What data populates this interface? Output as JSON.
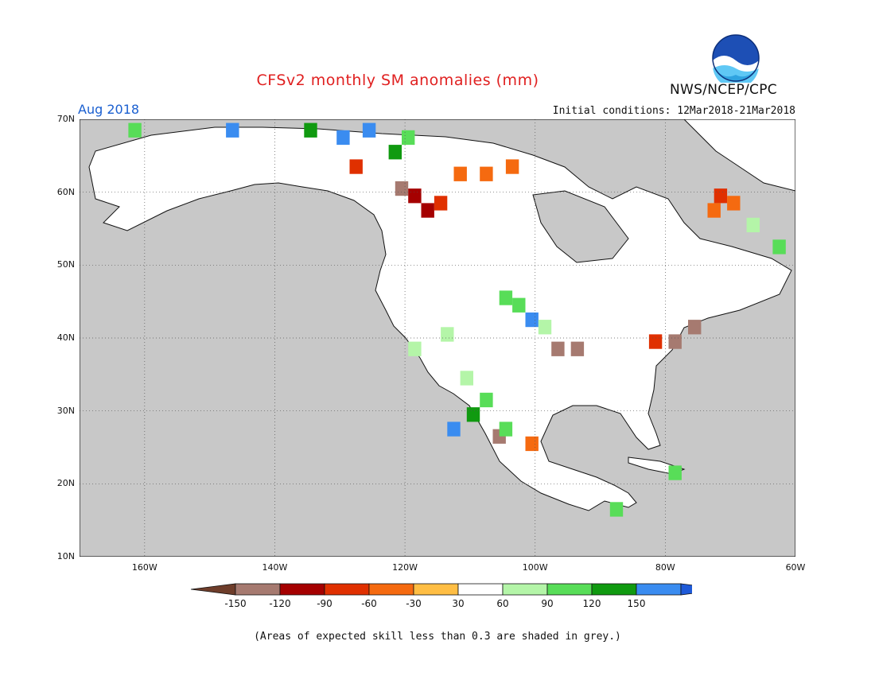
{
  "title": "CFSv2 monthly SM anomalies (mm)",
  "valid_month": "Aug 2018",
  "initial_conditions": "Initial conditions: 12Mar2018-21Mar2018",
  "agency": "NWS/NCEP/CPC",
  "logo_text": "NOAA",
  "footnote": "(Areas of expected skill less than 0.3 are shaded in grey.)",
  "map": {
    "lon_range": [
      -170,
      -60
    ],
    "lat_range": [
      10,
      70
    ],
    "lat_labels": [
      "70N",
      "60N",
      "50N",
      "40N",
      "30N",
      "20N",
      "10N"
    ],
    "lon_labels": [
      "160W",
      "140W",
      "120W",
      "100W",
      "80W",
      "60W"
    ],
    "colors": {
      "no_skill": "#c8c8c8",
      "land_neutral": "#ffffff",
      "coast": "#111111"
    }
  },
  "colorbar": {
    "labels": [
      "-150",
      "-120",
      "-90",
      "-60",
      "-30",
      "30",
      "60",
      "90",
      "120",
      "150"
    ],
    "colors": [
      "#6e3d2a",
      "#a67a70",
      "#a50000",
      "#e03000",
      "#f56a10",
      "#ffbe44",
      "#ffffff",
      "#b4f5a8",
      "#58dd58",
      "#109a10",
      "#3a8cf0",
      "#1e5ad8"
    ]
  },
  "anomaly_cells": [
    {
      "lon": -128,
      "lat": 64,
      "v": -90
    },
    {
      "lon": -121,
      "lat": 61,
      "v": -150
    },
    {
      "lon": -119,
      "lat": 60,
      "v": -120
    },
    {
      "lon": -117,
      "lat": 58,
      "v": -120
    },
    {
      "lon": -115,
      "lat": 59,
      "v": -90
    },
    {
      "lon": -112,
      "lat": 63,
      "v": -60
    },
    {
      "lon": -108,
      "lat": 63,
      "v": -60
    },
    {
      "lon": -104,
      "lat": 64,
      "v": -60
    },
    {
      "lon": -72,
      "lat": 60,
      "v": -90
    },
    {
      "lon": -70,
      "lat": 59,
      "v": -60
    },
    {
      "lon": -73,
      "lat": 58,
      "v": -60
    },
    {
      "lon": -135,
      "lat": 69,
      "v": 120
    },
    {
      "lon": -130,
      "lat": 68,
      "v": 150
    },
    {
      "lon": -126,
      "lat": 69,
      "v": 150
    },
    {
      "lon": -120,
      "lat": 68,
      "v": 90
    },
    {
      "lon": -122,
      "lat": 66,
      "v": 120
    },
    {
      "lon": -162,
      "lat": 69,
      "v": 90
    },
    {
      "lon": -147,
      "lat": 69,
      "v": 150
    },
    {
      "lon": -105,
      "lat": 46,
      "v": 90
    },
    {
      "lon": -103,
      "lat": 45,
      "v": 90
    },
    {
      "lon": -101,
      "lat": 43,
      "v": 150
    },
    {
      "lon": -99,
      "lat": 42,
      "v": 60
    },
    {
      "lon": -111,
      "lat": 35,
      "v": 60
    },
    {
      "lon": -108,
      "lat": 32,
      "v": 90
    },
    {
      "lon": -110,
      "lat": 30,
      "v": 120
    },
    {
      "lon": -113,
      "lat": 28,
      "v": 150
    },
    {
      "lon": -106,
      "lat": 27,
      "v": -150
    },
    {
      "lon": -105,
      "lat": 28,
      "v": 90
    },
    {
      "lon": -101,
      "lat": 26,
      "v": -60
    },
    {
      "lon": -114,
      "lat": 41,
      "v": 60
    },
    {
      "lon": -119,
      "lat": 39,
      "v": 60
    },
    {
      "lon": -97,
      "lat": 39,
      "v": -150
    },
    {
      "lon": -94,
      "lat": 39,
      "v": -150
    },
    {
      "lon": -79,
      "lat": 40,
      "v": -150
    },
    {
      "lon": -76,
      "lat": 42,
      "v": -150
    },
    {
      "lon": -82,
      "lat": 40,
      "v": -90
    },
    {
      "lon": -88,
      "lat": 17,
      "v": 90
    },
    {
      "lon": -79,
      "lat": 22,
      "v": 90
    },
    {
      "lon": -67,
      "lat": 56,
      "v": 60
    },
    {
      "lon": -63,
      "lat": 53,
      "v": 90
    }
  ]
}
